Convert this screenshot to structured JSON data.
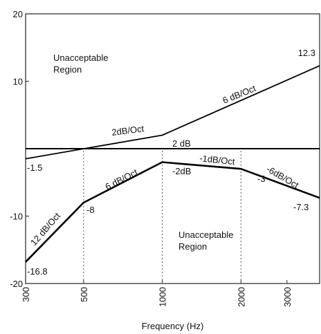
{
  "chart_data": {
    "type": "line",
    "xlabel": "Frequency (Hz)",
    "x_scale": "log",
    "xlim": [
      300,
      4000
    ],
    "ylim": [
      -20,
      20
    ],
    "x_ticks": [
      300,
      500,
      1000,
      2000,
      3000
    ],
    "x_tick_labels": [
      "300",
      "500",
      "1000",
      "2000",
      "3000"
    ],
    "y_ticks": [
      20,
      10,
      -10,
      -20
    ],
    "y_tick_labels": [
      "20",
      "10",
      "-10",
      "-20"
    ],
    "grid": false,
    "reference_level": 0,
    "series": [
      {
        "role": "upper-limit",
        "x": [
          300,
          1000,
          4000
        ],
        "y": [
          -1.5,
          2,
          12.3
        ]
      },
      {
        "role": "lower-limit",
        "x": [
          300,
          500,
          1000,
          2000,
          4000
        ],
        "y": [
          -16.8,
          -8,
          -2,
          -3,
          -7.3
        ]
      }
    ],
    "guide_lines_x": [
      500,
      1000,
      2000
    ],
    "slope_labels": [
      "2dB/Oct",
      "6 dB/Oct",
      "12 dB/Oct",
      "6 dB/Oct",
      "-1dB/Oct",
      "-6dB/Oct"
    ],
    "value_labels": [
      "12.3",
      "2 dB",
      "-1.5",
      "-2dB",
      "-3",
      "-8",
      "-7.3",
      "-16.8"
    ],
    "region_labels": [
      {
        "line1": "Unacceptable",
        "line2": "Region"
      },
      {
        "line1": "Unacceptable",
        "line2": "Region"
      }
    ]
  }
}
